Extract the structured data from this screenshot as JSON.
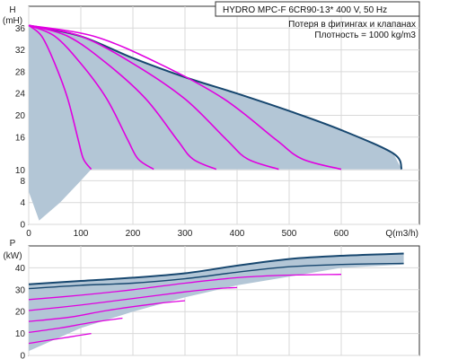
{
  "colors": {
    "envelope_fill": "#b3c6d6",
    "envelope_line": "#17476f",
    "curve": "#e000e0",
    "grid": "#d9d9d9",
    "axis": "#333333"
  },
  "header": {
    "title": "HYDRO MPC-F 6CR90-1",
    "spec": "3* 400 V, 50 Hz",
    "note1": "Потеря в фитингах и клапанах",
    "note2": "Плотность = 1000 kg/m3"
  },
  "chart_data": [
    {
      "type": "line",
      "ylabel": "H",
      "yunit": "(mH)",
      "xlabel": "Q(m3/h)",
      "xlim": [
        0,
        750
      ],
      "ylim": [
        0,
        40
      ],
      "xticks": [
        "0",
        "100",
        "200",
        "300",
        "400",
        "500",
        "600"
      ],
      "yticks": [
        "0",
        "4",
        "8",
        "10",
        "16",
        "20",
        "24",
        "28",
        "32",
        "36"
      ],
      "envelope": {
        "max_curve": [
          [
            0,
            36.5
          ],
          [
            100,
            34.5
          ],
          [
            200,
            30.5
          ],
          [
            300,
            27
          ],
          [
            400,
            24
          ],
          [
            500,
            20.8
          ],
          [
            600,
            17.3
          ],
          [
            700,
            13
          ],
          [
            716,
            10.1
          ]
        ],
        "low_profile": [
          [
            716,
            10.1
          ],
          [
            600,
            10.1
          ],
          [
            120,
            10.1
          ],
          [
            95,
            7.5
          ],
          [
            60,
            4
          ],
          [
            20,
            0.7
          ],
          [
            0,
            6
          ],
          [
            0,
            36.5
          ]
        ]
      },
      "series": [
        {
          "points": [
            [
              0,
              36.5
            ],
            [
              25,
              34.5
            ],
            [
              50,
              29.5
            ],
            [
              75,
              23
            ],
            [
              95,
              15.5
            ],
            [
              105,
              12
            ],
            [
              120,
              10.1
            ]
          ]
        },
        {
          "points": [
            [
              0,
              36.5
            ],
            [
              50,
              34.5
            ],
            [
              100,
              29.5
            ],
            [
              150,
              23
            ],
            [
              190,
              15.5
            ],
            [
              210,
              12
            ],
            [
              240,
              10.1
            ]
          ]
        },
        {
          "points": [
            [
              0,
              36.5
            ],
            [
              75,
              34.5
            ],
            [
              150,
              29.5
            ],
            [
              225,
              23
            ],
            [
              285,
              15.5
            ],
            [
              315,
              12
            ],
            [
              360,
              10.1
            ]
          ]
        },
        {
          "points": [
            [
              0,
              36.5
            ],
            [
              100,
              34.5
            ],
            [
              200,
              29.5
            ],
            [
              300,
              23
            ],
            [
              380,
              15.5
            ],
            [
              420,
              12
            ],
            [
              480,
              10.1
            ]
          ]
        },
        {
          "points": [
            [
              0,
              36.5
            ],
            [
              125,
              34.5
            ],
            [
              250,
              29.5
            ],
            [
              375,
              23
            ],
            [
              475,
              15.5
            ],
            [
              525,
              12
            ],
            [
              600,
              10.1
            ]
          ]
        }
      ]
    },
    {
      "type": "line",
      "ylabel": "P",
      "yunit": "(kW)",
      "xlim": [
        0,
        750
      ],
      "ylim": [
        0,
        50
      ],
      "yticks": [
        "0",
        "10",
        "20",
        "30",
        "40"
      ],
      "envelope": {
        "upper": [
          [
            0,
            32.5
          ],
          [
            100,
            34
          ],
          [
            200,
            35.5
          ],
          [
            300,
            37.5
          ],
          [
            400,
            41
          ],
          [
            500,
            44
          ],
          [
            600,
            45.5
          ],
          [
            720,
            46.5
          ]
        ],
        "lower": [
          [
            720,
            41.5
          ],
          [
            600,
            40
          ],
          [
            500,
            36
          ],
          [
            400,
            32
          ],
          [
            300,
            26.5
          ],
          [
            200,
            20
          ],
          [
            100,
            12.5
          ],
          [
            0,
            2
          ]
        ]
      },
      "series": [
        {
          "points": [
            [
              0,
              30.5
            ],
            [
              100,
              32
            ],
            [
              200,
              33
            ],
            [
              300,
              35
            ],
            [
              400,
              38
            ],
            [
              500,
              40.5
            ],
            [
              600,
              41.5
            ],
            [
              720,
              42
            ]
          ]
        },
        {
          "points": [
            [
              0,
              25.5
            ],
            [
              100,
              27.5
            ],
            [
              200,
              30
            ],
            [
              300,
              33
            ],
            [
              400,
              35.5
            ],
            [
              480,
              36.5
            ],
            [
              600,
              37
            ]
          ]
        },
        {
          "points": [
            [
              0,
              20.5
            ],
            [
              100,
              23
            ],
            [
              200,
              26
            ],
            [
              300,
              29
            ],
            [
              360,
              30.5
            ],
            [
              400,
              31
            ]
          ]
        },
        {
          "points": [
            [
              0,
              15.5
            ],
            [
              80,
              17.5
            ],
            [
              150,
              20.5
            ],
            [
              240,
              23.5
            ],
            [
              300,
              25
            ]
          ]
        },
        {
          "points": [
            [
              0,
              10.5
            ],
            [
              60,
              12.5
            ],
            [
              120,
              15
            ],
            [
              180,
              17
            ]
          ]
        },
        {
          "points": [
            [
              0,
              5.5
            ],
            [
              40,
              7
            ],
            [
              80,
              8.5
            ],
            [
              120,
              10
            ]
          ]
        }
      ]
    }
  ]
}
